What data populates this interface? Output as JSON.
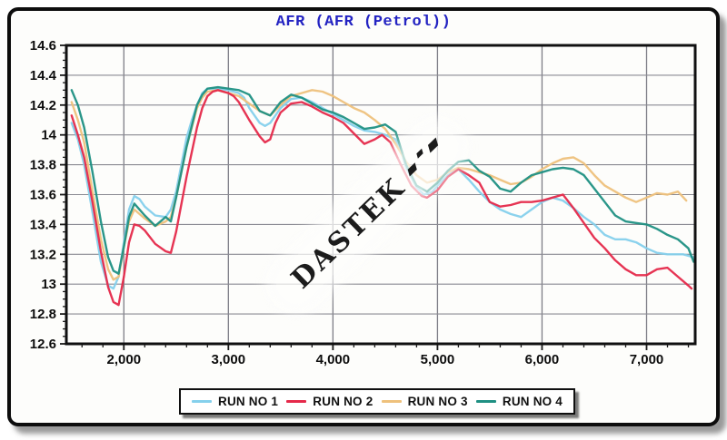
{
  "header": {
    "title": "AFR (AFR (Petrol))",
    "title_color": "#2323c2"
  },
  "watermark": {
    "text": "DASTEK"
  },
  "chart_data": {
    "type": "line",
    "title": "AFR (AFR (Petrol))",
    "xlabel": "",
    "ylabel": "",
    "grid": "on",
    "grid_color": "#8a8a92",
    "frame_color": "#101010",
    "legend_position": "bottom",
    "x_axis": {
      "min": 1450,
      "max": 7465,
      "major_tick_step": 1000,
      "minor_tick_step": 200,
      "ticks": [
        {
          "label": "2,000",
          "value": 2000
        },
        {
          "label": "3,000",
          "value": 3000
        },
        {
          "label": "4,000",
          "value": 4000
        },
        {
          "label": "5,000",
          "value": 5000
        },
        {
          "label": "6,000",
          "value": 6000
        },
        {
          "label": "7,000",
          "value": 7000
        }
      ]
    },
    "y_axis": {
      "min": 12.6,
      "max": 14.6,
      "major_tick_step": 0.2,
      "minor_tick_step": 0.05,
      "ticks": [
        {
          "label": "14.6",
          "value": 14.6
        },
        {
          "label": "14.4",
          "value": 14.4
        },
        {
          "label": "14.2",
          "value": 14.2
        },
        {
          "label": "14",
          "value": 14.0
        },
        {
          "label": "13.8",
          "value": 13.8
        },
        {
          "label": "13.6",
          "value": 13.6
        },
        {
          "label": "13.4",
          "value": 13.4
        },
        {
          "label": "13.2",
          "value": 13.2
        },
        {
          "label": "13",
          "value": 13.0
        },
        {
          "label": "12.8",
          "value": 12.8
        },
        {
          "label": "12.6",
          "value": 12.6
        }
      ]
    },
    "series": [
      {
        "name": "RUN NO 1",
        "color": "#85d0ec",
        "points": [
          [
            1500,
            14.08
          ],
          [
            1560,
            13.97
          ],
          [
            1620,
            13.8
          ],
          [
            1700,
            13.48
          ],
          [
            1780,
            13.15
          ],
          [
            1850,
            12.99
          ],
          [
            1900,
            12.97
          ],
          [
            1950,
            13.05
          ],
          [
            2000,
            13.28
          ],
          [
            2050,
            13.5
          ],
          [
            2100,
            13.59
          ],
          [
            2150,
            13.57
          ],
          [
            2200,
            13.52
          ],
          [
            2300,
            13.46
          ],
          [
            2400,
            13.45
          ],
          [
            2450,
            13.5
          ],
          [
            2500,
            13.62
          ],
          [
            2600,
            13.98
          ],
          [
            2650,
            14.1
          ],
          [
            2700,
            14.2
          ],
          [
            2750,
            14.28
          ],
          [
            2800,
            14.31
          ],
          [
            2900,
            14.31
          ],
          [
            3000,
            14.3
          ],
          [
            3100,
            14.28
          ],
          [
            3150,
            14.25
          ],
          [
            3200,
            14.18
          ],
          [
            3300,
            14.08
          ],
          [
            3350,
            14.06
          ],
          [
            3400,
            14.08
          ],
          [
            3500,
            14.18
          ],
          [
            3600,
            14.24
          ],
          [
            3700,
            14.25
          ],
          [
            3800,
            14.22
          ],
          [
            3900,
            14.18
          ],
          [
            4000,
            14.14
          ],
          [
            4100,
            14.1
          ],
          [
            4200,
            14.06
          ],
          [
            4300,
            14.03
          ],
          [
            4400,
            14.02
          ],
          [
            4500,
            14.0
          ],
          [
            4600,
            13.97
          ],
          [
            4650,
            13.9
          ],
          [
            4700,
            13.78
          ],
          [
            4800,
            13.65
          ],
          [
            4870,
            13.6
          ],
          [
            4950,
            13.62
          ],
          [
            5000,
            13.66
          ],
          [
            5100,
            13.73
          ],
          [
            5200,
            13.77
          ],
          [
            5300,
            13.7
          ],
          [
            5400,
            13.62
          ],
          [
            5500,
            13.55
          ],
          [
            5600,
            13.5
          ],
          [
            5700,
            13.47
          ],
          [
            5800,
            13.45
          ],
          [
            5900,
            13.5
          ],
          [
            6000,
            13.55
          ],
          [
            6100,
            13.58
          ],
          [
            6200,
            13.56
          ],
          [
            6300,
            13.51
          ],
          [
            6400,
            13.45
          ],
          [
            6500,
            13.4
          ],
          [
            6600,
            13.33
          ],
          [
            6700,
            13.3
          ],
          [
            6800,
            13.3
          ],
          [
            6900,
            13.28
          ],
          [
            7000,
            13.24
          ],
          [
            7100,
            13.21
          ],
          [
            7200,
            13.2
          ],
          [
            7350,
            13.2
          ],
          [
            7450,
            13.18
          ]
        ]
      },
      {
        "name": "RUN NO 2",
        "color": "#e5294a",
        "points": [
          [
            1500,
            14.13
          ],
          [
            1560,
            14.0
          ],
          [
            1620,
            13.85
          ],
          [
            1700,
            13.55
          ],
          [
            1780,
            13.22
          ],
          [
            1850,
            12.98
          ],
          [
            1900,
            12.88
          ],
          [
            1950,
            12.86
          ],
          [
            2000,
            13.05
          ],
          [
            2050,
            13.28
          ],
          [
            2100,
            13.4
          ],
          [
            2150,
            13.39
          ],
          [
            2200,
            13.36
          ],
          [
            2300,
            13.27
          ],
          [
            2400,
            13.22
          ],
          [
            2450,
            13.21
          ],
          [
            2500,
            13.35
          ],
          [
            2600,
            13.72
          ],
          [
            2700,
            14.05
          ],
          [
            2750,
            14.18
          ],
          [
            2800,
            14.26
          ],
          [
            2850,
            14.29
          ],
          [
            2900,
            14.3
          ],
          [
            3000,
            14.28
          ],
          [
            3050,
            14.26
          ],
          [
            3100,
            14.22
          ],
          [
            3200,
            14.1
          ],
          [
            3300,
            13.99
          ],
          [
            3350,
            13.95
          ],
          [
            3400,
            13.97
          ],
          [
            3450,
            14.08
          ],
          [
            3500,
            14.15
          ],
          [
            3600,
            14.21
          ],
          [
            3700,
            14.22
          ],
          [
            3800,
            14.19
          ],
          [
            3900,
            14.15
          ],
          [
            4000,
            14.12
          ],
          [
            4100,
            14.08
          ],
          [
            4200,
            14.01
          ],
          [
            4300,
            13.94
          ],
          [
            4400,
            13.97
          ],
          [
            4470,
            14.0
          ],
          [
            4550,
            13.95
          ],
          [
            4650,
            13.8
          ],
          [
            4750,
            13.66
          ],
          [
            4850,
            13.59
          ],
          [
            4900,
            13.58
          ],
          [
            5000,
            13.63
          ],
          [
            5100,
            13.72
          ],
          [
            5200,
            13.77
          ],
          [
            5300,
            13.73
          ],
          [
            5400,
            13.68
          ],
          [
            5500,
            13.55
          ],
          [
            5600,
            13.52
          ],
          [
            5700,
            13.53
          ],
          [
            5800,
            13.55
          ],
          [
            5900,
            13.55
          ],
          [
            6000,
            13.56
          ],
          [
            6100,
            13.58
          ],
          [
            6200,
            13.6
          ],
          [
            6300,
            13.51
          ],
          [
            6400,
            13.41
          ],
          [
            6500,
            13.31
          ],
          [
            6600,
            13.24
          ],
          [
            6700,
            13.16
          ],
          [
            6800,
            13.1
          ],
          [
            6900,
            13.06
          ],
          [
            7000,
            13.06
          ],
          [
            7100,
            13.1
          ],
          [
            7200,
            13.11
          ],
          [
            7300,
            13.05
          ],
          [
            7400,
            12.99
          ],
          [
            7430,
            12.97
          ]
        ]
      },
      {
        "name": "RUN NO 3",
        "color": "#eec17c",
        "points": [
          [
            1500,
            14.22
          ],
          [
            1560,
            14.1
          ],
          [
            1620,
            13.95
          ],
          [
            1700,
            13.62
          ],
          [
            1780,
            13.3
          ],
          [
            1850,
            13.1
          ],
          [
            1900,
            13.03
          ],
          [
            1950,
            13.05
          ],
          [
            2000,
            13.25
          ],
          [
            2050,
            13.42
          ],
          [
            2100,
            13.5
          ],
          [
            2150,
            13.47
          ],
          [
            2200,
            13.44
          ],
          [
            2300,
            13.39
          ],
          [
            2400,
            13.42
          ],
          [
            2450,
            13.45
          ],
          [
            2500,
            13.58
          ],
          [
            2600,
            13.92
          ],
          [
            2700,
            14.18
          ],
          [
            2750,
            14.25
          ],
          [
            2800,
            14.29
          ],
          [
            2900,
            14.3
          ],
          [
            3000,
            14.28
          ],
          [
            3100,
            14.26
          ],
          [
            3200,
            14.21
          ],
          [
            3300,
            14.16
          ],
          [
            3400,
            14.13
          ],
          [
            3500,
            14.2
          ],
          [
            3600,
            14.26
          ],
          [
            3700,
            14.28
          ],
          [
            3800,
            14.3
          ],
          [
            3900,
            14.29
          ],
          [
            4000,
            14.26
          ],
          [
            4100,
            14.22
          ],
          [
            4200,
            14.18
          ],
          [
            4300,
            14.15
          ],
          [
            4400,
            14.1
          ],
          [
            4500,
            14.04
          ],
          [
            4600,
            13.94
          ],
          [
            4700,
            13.82
          ],
          [
            4800,
            13.73
          ],
          [
            4900,
            13.68
          ],
          [
            5000,
            13.7
          ],
          [
            5100,
            13.75
          ],
          [
            5200,
            13.78
          ],
          [
            5300,
            13.77
          ],
          [
            5400,
            13.75
          ],
          [
            5500,
            13.73
          ],
          [
            5600,
            13.7
          ],
          [
            5700,
            13.67
          ],
          [
            5800,
            13.68
          ],
          [
            5900,
            13.72
          ],
          [
            6000,
            13.77
          ],
          [
            6100,
            13.81
          ],
          [
            6200,
            13.84
          ],
          [
            6300,
            13.85
          ],
          [
            6400,
            13.81
          ],
          [
            6500,
            13.73
          ],
          [
            6600,
            13.66
          ],
          [
            6700,
            13.62
          ],
          [
            6800,
            13.58
          ],
          [
            6900,
            13.55
          ],
          [
            7000,
            13.58
          ],
          [
            7100,
            13.61
          ],
          [
            7200,
            13.6
          ],
          [
            7300,
            13.62
          ],
          [
            7380,
            13.56
          ]
        ]
      },
      {
        "name": "RUN NO 4",
        "color": "#1f9083",
        "points": [
          [
            1500,
            14.3
          ],
          [
            1560,
            14.2
          ],
          [
            1620,
            14.05
          ],
          [
            1700,
            13.75
          ],
          [
            1780,
            13.42
          ],
          [
            1850,
            13.18
          ],
          [
            1900,
            13.09
          ],
          [
            1950,
            13.07
          ],
          [
            2000,
            13.25
          ],
          [
            2050,
            13.45
          ],
          [
            2100,
            13.54
          ],
          [
            2150,
            13.5
          ],
          [
            2200,
            13.46
          ],
          [
            2300,
            13.39
          ],
          [
            2400,
            13.45
          ],
          [
            2450,
            13.42
          ],
          [
            2500,
            13.58
          ],
          [
            2600,
            13.92
          ],
          [
            2700,
            14.2
          ],
          [
            2750,
            14.27
          ],
          [
            2800,
            14.31
          ],
          [
            2900,
            14.32
          ],
          [
            3000,
            14.31
          ],
          [
            3100,
            14.3
          ],
          [
            3200,
            14.27
          ],
          [
            3300,
            14.16
          ],
          [
            3400,
            14.13
          ],
          [
            3500,
            14.22
          ],
          [
            3600,
            14.27
          ],
          [
            3700,
            14.25
          ],
          [
            3800,
            14.21
          ],
          [
            3900,
            14.17
          ],
          [
            4000,
            14.15
          ],
          [
            4100,
            14.12
          ],
          [
            4200,
            14.08
          ],
          [
            4300,
            14.04
          ],
          [
            4400,
            14.05
          ],
          [
            4500,
            14.07
          ],
          [
            4600,
            14.02
          ],
          [
            4700,
            13.8
          ],
          [
            4800,
            13.66
          ],
          [
            4900,
            13.62
          ],
          [
            5000,
            13.68
          ],
          [
            5100,
            13.76
          ],
          [
            5200,
            13.82
          ],
          [
            5300,
            13.83
          ],
          [
            5400,
            13.76
          ],
          [
            5500,
            13.72
          ],
          [
            5600,
            13.64
          ],
          [
            5700,
            13.62
          ],
          [
            5800,
            13.68
          ],
          [
            5900,
            13.73
          ],
          [
            6000,
            13.75
          ],
          [
            6100,
            13.77
          ],
          [
            6200,
            13.78
          ],
          [
            6300,
            13.77
          ],
          [
            6400,
            13.73
          ],
          [
            6500,
            13.64
          ],
          [
            6600,
            13.55
          ],
          [
            6700,
            13.46
          ],
          [
            6800,
            13.42
          ],
          [
            6900,
            13.41
          ],
          [
            7000,
            13.4
          ],
          [
            7100,
            13.37
          ],
          [
            7200,
            13.33
          ],
          [
            7300,
            13.3
          ],
          [
            7400,
            13.24
          ],
          [
            7450,
            13.15
          ]
        ]
      }
    ]
  }
}
